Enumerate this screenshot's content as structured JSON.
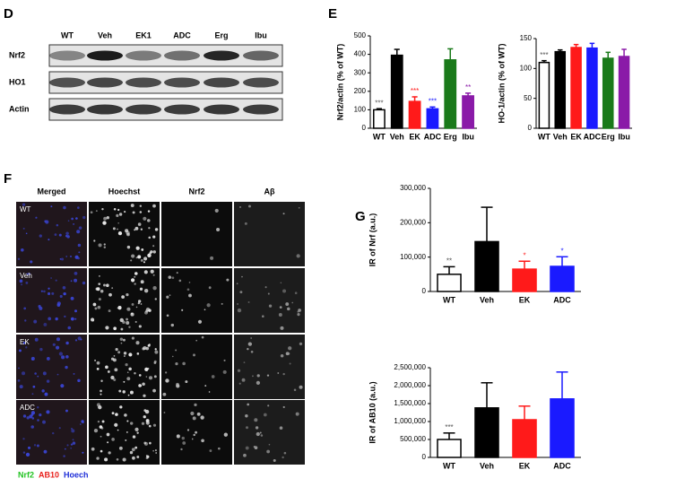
{
  "letters": [
    "D",
    "E",
    "F",
    "G"
  ],
  "blot": {
    "lanes": [
      "WT",
      "Veh",
      "EK1",
      "ADC",
      "Erg",
      "Ibu"
    ],
    "rows": [
      "Nrf2",
      "HO1",
      "Actin"
    ]
  },
  "images": {
    "columns": [
      "Merged",
      "Hoechst",
      "Nrf2",
      "Aβ"
    ],
    "rows": [
      "WT",
      "Veh",
      "EK",
      "ADC"
    ],
    "legend": [
      {
        "name": "Nrf2",
        "color": "#22c322"
      },
      {
        "name": "AB10",
        "color": "#e8211c"
      },
      {
        "name": "Hoech",
        "color": "#1f2fd8"
      }
    ]
  },
  "chart_data": [
    {
      "type": "bar",
      "ylabel": "Nrf2/actin (% of WT)",
      "categories": [
        "WT",
        "Veh",
        "EK",
        "ADC",
        "Erg",
        "Ibu"
      ],
      "series": [
        {
          "values": [
            100,
            395,
            145,
            105,
            370,
            175
          ],
          "errors": [
            6,
            32,
            25,
            10,
            60,
            15
          ],
          "colors": [
            "#ffffff",
            "#000000",
            "#ff1a1a",
            "#1a1aff",
            "#1a7a1a",
            "#8a1aa8"
          ]
        }
      ],
      "annotations": [
        "***",
        null,
        "***",
        "***",
        null,
        "**"
      ],
      "ylim": [
        0,
        500
      ],
      "yticks": [
        0,
        100,
        200,
        300,
        400,
        500
      ]
    },
    {
      "type": "bar",
      "ylabel": "HO-1/actin (% of WT)",
      "categories": [
        "WT",
        "Veh",
        "EK",
        "ADC",
        "Erg",
        "Ibu"
      ],
      "series": [
        {
          "values": [
            110,
            128,
            135,
            134,
            117,
            120
          ],
          "errors": [
            3,
            3,
            5,
            8,
            10,
            12
          ],
          "colors": [
            "#ffffff",
            "#000000",
            "#ff1a1a",
            "#1a1aff",
            "#1a7a1a",
            "#8a1aa8"
          ]
        }
      ],
      "annotations": [
        "***",
        null,
        null,
        null,
        null,
        null
      ],
      "ylim": [
        0,
        150
      ],
      "yticks": [
        0,
        50,
        100,
        150
      ]
    },
    {
      "type": "bar",
      "ylabel": "IR of Nrf (a.u.)",
      "categories": [
        "WT",
        "Veh",
        "EK",
        "ADC"
      ],
      "series": [
        {
          "values": [
            50000,
            145000,
            65000,
            73000
          ],
          "errors": [
            22000,
            100000,
            23000,
            28000
          ],
          "colors": [
            "#ffffff",
            "#000000",
            "#ff1a1a",
            "#1a1aff"
          ]
        }
      ],
      "annotations": [
        "**",
        null,
        "*",
        "*"
      ],
      "ylim": [
        0,
        300000
      ],
      "yticks": [
        0,
        {
          "value": 100000,
          "label": "100,000"
        },
        {
          "value": 200000,
          "label": "200,000"
        },
        {
          "value": 300000,
          "label": "300,000"
        }
      ]
    },
    {
      "type": "bar",
      "ylabel": "IR of AB10 (a.u.)",
      "categories": [
        "WT",
        "Veh",
        "EK",
        "ADC"
      ],
      "series": [
        {
          "values": [
            500000,
            1380000,
            1050000,
            1630000
          ],
          "errors": [
            180000,
            700000,
            380000,
            750000
          ],
          "colors": [
            "#ffffff",
            "#000000",
            "#ff1a1a",
            "#1a1aff"
          ]
        }
      ],
      "annotations": [
        "***",
        null,
        null,
        null
      ],
      "ylim": [
        0,
        2500000
      ],
      "yticks": [
        0,
        {
          "value": 500000,
          "label": "500,000"
        },
        {
          "value": 1000000,
          "label": "1,000,000"
        },
        {
          "value": 1500000,
          "label": "1,500,000"
        },
        {
          "value": 2000000,
          "label": "2,000,000"
        },
        {
          "value": 2500000,
          "label": "2,500,000"
        }
      ]
    }
  ]
}
